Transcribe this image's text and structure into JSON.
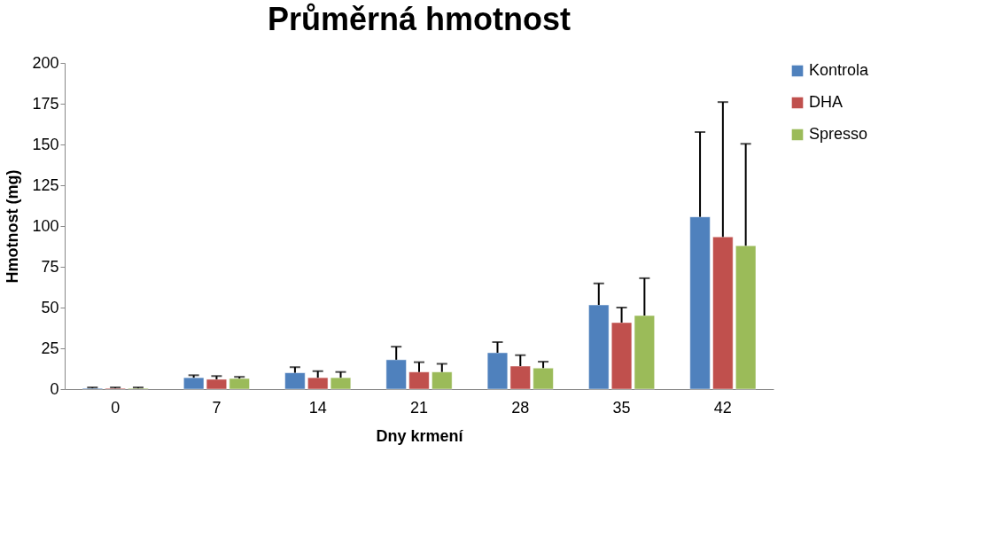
{
  "chart_data": {
    "type": "bar",
    "title": "Průměrná hmotnost",
    "xlabel": "Dny krmení",
    "ylabel": "Hmotnost (mg)",
    "categories": [
      "0",
      "7",
      "14",
      "21",
      "28",
      "35",
      "42"
    ],
    "series": [
      {
        "name": "Kontrola",
        "color": "#4f81bd",
        "values": [
          0.5,
          7,
          10,
          18,
          22.3,
          51.6,
          105.6
        ],
        "errors": [
          [
            0.5,
            1
          ],
          [
            7,
            8.5
          ],
          [
            10,
            13.5
          ],
          [
            18,
            26
          ],
          [
            22.3,
            28.8
          ],
          [
            51.6,
            64.8
          ],
          [
            105.6,
            157.6
          ]
        ]
      },
      {
        "name": "DHA",
        "color": "#c0504d",
        "values": [
          0.5,
          6,
          7,
          10.5,
          14.1,
          40.8,
          93.3
        ],
        "errors": [
          [
            0.5,
            1
          ],
          [
            6,
            8
          ],
          [
            7,
            11
          ],
          [
            10.5,
            16.5
          ],
          [
            14.1,
            20.8
          ],
          [
            40.8,
            50
          ],
          [
            93.3,
            176
          ]
        ]
      },
      {
        "name": "Spresso",
        "color": "#9bbb59",
        "values": [
          0.5,
          6.5,
          7,
          10.5,
          12.9,
          45.1,
          87.9
        ],
        "errors": [
          [
            0.5,
            1
          ],
          [
            6.5,
            7.5
          ],
          [
            7,
            10.5
          ],
          [
            10.5,
            15.5
          ],
          [
            12.9,
            16.8
          ],
          [
            45.1,
            68
          ],
          [
            87.9,
            150.4
          ]
        ]
      }
    ],
    "ylim": [
      0,
      200
    ],
    "yticks": [
      0,
      25,
      50,
      75,
      100,
      125,
      150,
      175,
      200
    ],
    "grid": false,
    "legend": "right"
  }
}
